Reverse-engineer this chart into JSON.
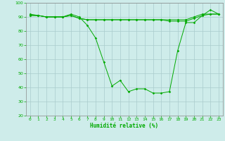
{
  "xlabel": "Humidité relative (%)",
  "xlim": [
    -0.5,
    23.5
  ],
  "ylim": [
    20,
    100
  ],
  "yticks": [
    20,
    30,
    40,
    50,
    60,
    70,
    80,
    90,
    100
  ],
  "xticks": [
    0,
    1,
    2,
    3,
    4,
    5,
    6,
    7,
    8,
    9,
    10,
    11,
    12,
    13,
    14,
    15,
    16,
    17,
    18,
    19,
    20,
    21,
    22,
    23
  ],
  "background_color": "#ceecea",
  "grid_color": "#aacccc",
  "line_color": "#00aa00",
  "line1": [
    92,
    91,
    90,
    90,
    90,
    92,
    90,
    84,
    75,
    58,
    41,
    45,
    37,
    39,
    39,
    36,
    36,
    37,
    66,
    86,
    86,
    91,
    95,
    92
  ],
  "line2": [
    91,
    91,
    90,
    90,
    90,
    91,
    89,
    88,
    88,
    88,
    88,
    88,
    88,
    88,
    88,
    88,
    88,
    87,
    87,
    87,
    89,
    91,
    92,
    92
  ],
  "line3": [
    91,
    91,
    90,
    90,
    90,
    91,
    89,
    88,
    88,
    88,
    88,
    88,
    88,
    88,
    88,
    88,
    88,
    88,
    88,
    88,
    90,
    92,
    92,
    92
  ]
}
